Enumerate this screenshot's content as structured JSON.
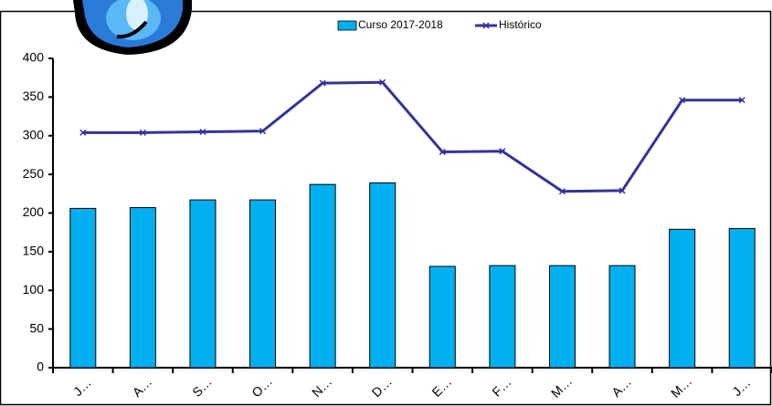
{
  "chart_data": {
    "type": "bar",
    "categories": [
      "J…",
      "A…",
      "S…",
      "O…",
      "N…",
      "D…",
      "E…",
      "F…",
      "M…",
      "A…",
      "M…",
      "J…"
    ],
    "series": [
      {
        "name": "Curso 2017-2018",
        "type": "bar",
        "color": "#00b0f0",
        "values": [
          206,
          207,
          217,
          217,
          237,
          239,
          131,
          132,
          132,
          132,
          179,
          180
        ]
      },
      {
        "name": "Histórico",
        "type": "line",
        "color": "#333399",
        "values": [
          304,
          304,
          305,
          306,
          368,
          369,
          279,
          280,
          228,
          229,
          346,
          346
        ]
      }
    ],
    "ylim": [
      0,
      400
    ],
    "yticks": [
      0,
      50,
      100,
      150,
      200,
      250,
      300,
      350,
      400
    ],
    "grid": false,
    "legend": "top"
  }
}
